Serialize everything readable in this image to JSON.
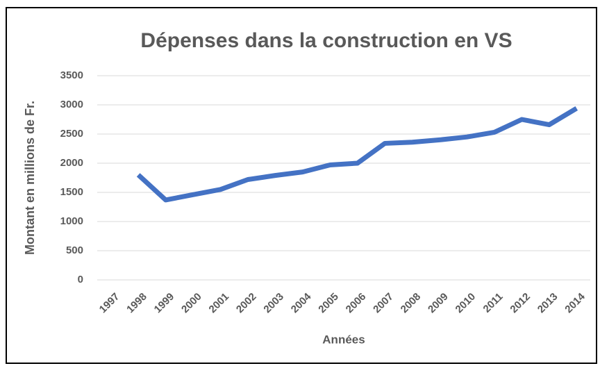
{
  "chart_data": {
    "type": "line",
    "title": "Dépenses dans la construction en VS",
    "x_label": "Années",
    "y_label": "Montant en millions de Fr.",
    "categories": [
      "1997",
      "1998",
      "1999",
      "2000",
      "2001",
      "2002",
      "2003",
      "2004",
      "2005",
      "2006",
      "2007",
      "2008",
      "2009",
      "2010",
      "2011",
      "2012",
      "2013",
      "2014"
    ],
    "series": [
      {
        "name": "Dépenses",
        "color": "#4472c4",
        "values": [
          null,
          1800,
          1370,
          1460,
          1550,
          1720,
          1790,
          1850,
          1970,
          2000,
          2340,
          2360,
          2400,
          2450,
          2530,
          2750,
          2660,
          2940
        ]
      }
    ],
    "ylim": [
      0,
      3500
    ],
    "yticks": [
      0,
      500,
      1000,
      1500,
      2000,
      2500,
      3000,
      3500
    ],
    "grid": true
  }
}
